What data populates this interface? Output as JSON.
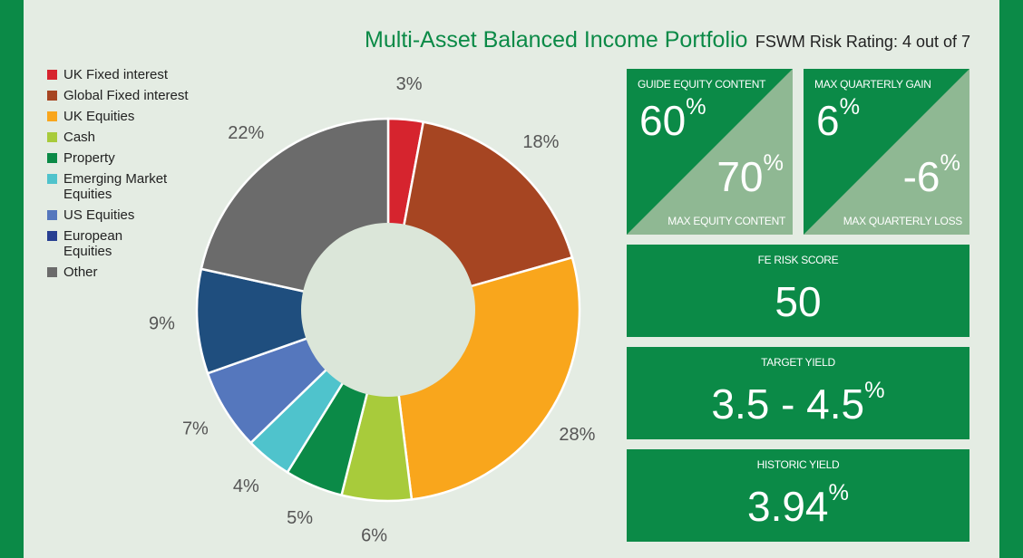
{
  "header": {
    "title": "Multi-Asset Balanced Income Portfolio",
    "subtitle": "FSWM Risk Rating: 4 out of 7"
  },
  "colors": {
    "brand_green": "#0b8a47",
    "tile_shade": "#8fb893",
    "background": "#e4ece3",
    "donut_hole": "#dbe6d9"
  },
  "chart_data": {
    "type": "pie",
    "style": "donut",
    "categories": [
      "UK Fixed interest",
      "Global Fixed interest",
      "UK Equities",
      "Cash",
      "Property",
      "Emerging Market Equities",
      "US Equities",
      "European Equities",
      "Other"
    ],
    "values": [
      3,
      18,
      28,
      6,
      5,
      4,
      7,
      9,
      22
    ],
    "data_labels": [
      "3%",
      "18%",
      "28%",
      "6%",
      "5%",
      "4%",
      "7%",
      "9%",
      "22%"
    ],
    "colors": [
      "#d6242e",
      "#a64522",
      "#f9a61c",
      "#a8cb3b",
      "#0b8a47",
      "#4fc3cc",
      "#5577bd",
      "#1f4e7e",
      "#6b6b6b"
    ],
    "legend_colors": [
      "#d6242e",
      "#a64522",
      "#f9a61c",
      "#a8cb3b",
      "#0b8a47",
      "#4fc3cc",
      "#5577bd",
      "#273f91",
      "#6b6b6b"
    ],
    "legend": {
      "position": "top-left",
      "items": [
        {
          "label": "UK Fixed interest"
        },
        {
          "label": "Global Fixed interest"
        },
        {
          "label": "UK Equities"
        },
        {
          "label": "Cash"
        },
        {
          "label": "Property"
        },
        {
          "label": "Emerging Market Equities",
          "lines": [
            "Emerging Market",
            "Equities"
          ]
        },
        {
          "label": "US Equities"
        },
        {
          "label": "European Equities",
          "lines": [
            "European",
            "Equities"
          ]
        },
        {
          "label": "Other"
        }
      ]
    }
  },
  "metrics": {
    "equity": {
      "guide_label": "GUIDE EQUITY CONTENT",
      "guide_value": "60",
      "max_label": "MAX EQUITY CONTENT",
      "max_value": "70",
      "unit": "%"
    },
    "quarterly": {
      "gain_label": "MAX QUARTERLY GAIN",
      "gain_value": "6",
      "loss_label": "MAX QUARTERLY LOSS",
      "loss_value": "-6",
      "unit": "%"
    },
    "fe_risk": {
      "label": "FE RISK SCORE",
      "value": "50"
    },
    "target_yield": {
      "label": "TARGET YIELD",
      "value": "3.5 - 4.5",
      "unit": "%"
    },
    "historic_yield": {
      "label": "HISTORIC YIELD",
      "value": "3.94",
      "unit": "%"
    }
  }
}
